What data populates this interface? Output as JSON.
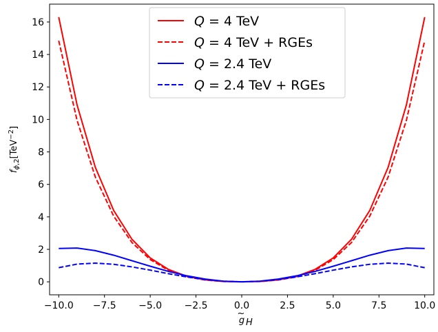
{
  "chart_data": {
    "type": "line",
    "title": "",
    "xlabel": "g̃_H",
    "ylabel": "f_{φ,2}[TeV⁻²]",
    "xlim": [
      -10.5,
      10.5
    ],
    "ylim": [
      -0.8,
      17.1
    ],
    "xticks": [
      -10,
      -7.5,
      -5,
      -2.5,
      0,
      2.5,
      5,
      7.5,
      10
    ],
    "xtick_labels": [
      "−10.0",
      "−7.5",
      "−5.0",
      "−2.5",
      "0.0",
      "2.5",
      "5.0",
      "7.5",
      "10.0"
    ],
    "yticks": [
      0,
      2,
      4,
      6,
      8,
      10,
      12,
      14,
      16
    ],
    "ytick_labels": [
      "0",
      "2",
      "4",
      "6",
      "8",
      "10",
      "12",
      "14",
      "16"
    ],
    "grid": false,
    "legend_position": "top-center",
    "x": [
      -10,
      -9,
      -8,
      -7,
      -6,
      -5,
      -4,
      -3,
      -2,
      -1,
      0,
      1,
      2,
      3,
      4,
      5,
      6,
      7,
      8,
      9,
      10
    ],
    "series": [
      {
        "name": "Q = 4 TeV",
        "color": "#ff0000",
        "dash": "solid",
        "values": [
          16.3,
          10.9,
          7.05,
          4.4,
          2.62,
          1.47,
          0.76,
          0.34,
          0.12,
          0.02,
          0.0,
          0.02,
          0.12,
          0.34,
          0.76,
          1.47,
          2.62,
          4.4,
          7.05,
          10.9,
          16.3
        ]
      },
      {
        "name": "Q = 4 TeV + RGEs",
        "color": "#ff0000",
        "dash": "dashed",
        "values": [
          14.85,
          9.95,
          6.45,
          4.05,
          2.42,
          1.37,
          0.7,
          0.31,
          0.11,
          0.02,
          0.0,
          0.02,
          0.11,
          0.31,
          0.7,
          1.37,
          2.42,
          4.05,
          6.45,
          9.95,
          14.85
        ]
      },
      {
        "name": "Q = 2.4 TeV",
        "color": "#0000ff",
        "dash": "solid",
        "values": [
          2.05,
          2.08,
          1.92,
          1.64,
          1.3,
          0.96,
          0.64,
          0.37,
          0.17,
          0.04,
          0.0,
          0.04,
          0.17,
          0.37,
          0.64,
          0.96,
          1.3,
          1.64,
          1.92,
          2.08,
          2.05
        ]
      },
      {
        "name": "Q = 2.4 TeV + RGEs",
        "color": "#0000ff",
        "dash": "dashed",
        "values": [
          0.87,
          1.09,
          1.15,
          1.08,
          0.92,
          0.72,
          0.5,
          0.3,
          0.14,
          0.04,
          0.0,
          0.04,
          0.14,
          0.3,
          0.5,
          0.72,
          0.92,
          1.08,
          1.15,
          1.09,
          0.87
        ]
      }
    ]
  },
  "legend": {
    "entries": [
      {
        "prefix": "Q",
        "text": " = 4 TeV"
      },
      {
        "prefix": "Q",
        "text": " = 4 TeV + RGEs"
      },
      {
        "prefix": "Q",
        "text": " = 2.4 TeV"
      },
      {
        "prefix": "Q",
        "text": " = 2.4 TeV + RGEs"
      }
    ]
  }
}
